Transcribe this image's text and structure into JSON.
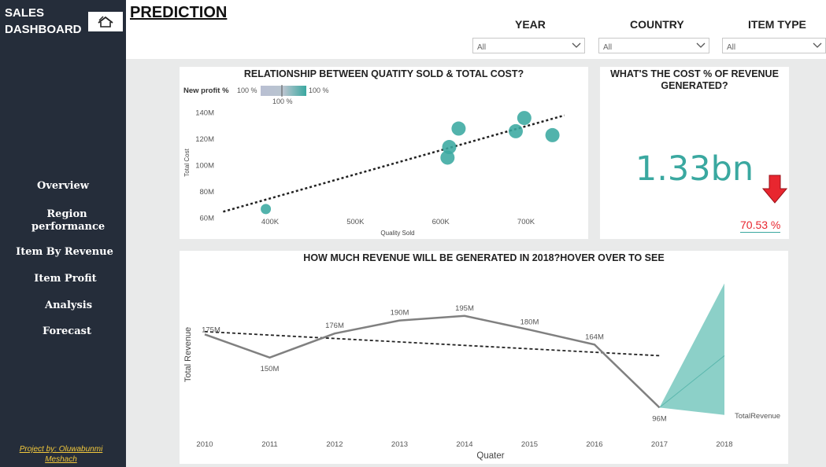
{
  "app": {
    "brand": "SALES DASHBOARD",
    "page_title": "PREDICTION",
    "home_icon": "home-icon"
  },
  "sidebar": {
    "items": [
      {
        "label": "Overview"
      },
      {
        "label": "Region performance"
      },
      {
        "label": "Item By Revenue"
      },
      {
        "label": "Item Profit"
      },
      {
        "label": "Analysis"
      },
      {
        "label": "Forecast"
      }
    ],
    "credit": "Project by: Oluwabunmi Meshach"
  },
  "filters": [
    {
      "label": "YEAR",
      "value": "All"
    },
    {
      "label": "COUNTRY",
      "value": "All"
    },
    {
      "label": "ITEM TYPE",
      "value": "All"
    }
  ],
  "scatter_card": {
    "title": "RELATIONSHIP BETWEEN QUATITY SOLD & TOTAL COST?",
    "legend_title": "New profit %",
    "legend_min": "100 %",
    "legend_max": "100 %",
    "legend_mid": "100 %"
  },
  "kpi_card": {
    "title": "WHAT'S THE COST % OF REVENUE GENERATED?",
    "value": "1.33bn",
    "sub_value": "70.53 %",
    "trend_icon": "down-arrow-icon",
    "value_color": "#3aa8a0",
    "down_color": "#e8262f"
  },
  "forecast_card": {
    "title": "HOW MUCH REVENUE WILL BE GENERATED IN 2018?HOVER OVER TO SEE"
  },
  "chart_data": [
    {
      "type": "scatter",
      "title": "RELATIONSHIP BETWEEN QUATITY SOLD & TOTAL COST?",
      "xlabel": "Quality Sold",
      "ylabel": "Total Cost",
      "x_ticks": [
        "400K",
        "500K",
        "600K",
        "700K"
      ],
      "y_ticks": [
        "60M",
        "80M",
        "100M",
        "120M",
        "140M"
      ],
      "xlim": [
        340000,
        760000
      ],
      "ylim": [
        58,
        145
      ],
      "points": [
        {
          "x": 395000,
          "y": 67
        },
        {
          "x": 608000,
          "y": 106
        },
        {
          "x": 610000,
          "y": 114
        },
        {
          "x": 621000,
          "y": 128
        },
        {
          "x": 688000,
          "y": 126
        },
        {
          "x": 698000,
          "y": 136
        },
        {
          "x": 731000,
          "y": 123
        }
      ],
      "trend": [
        {
          "x": 345000,
          "y": 65
        },
        {
          "x": 745000,
          "y": 138
        }
      ],
      "color": "#3aa8a0"
    },
    {
      "type": "line",
      "title": "HOW MUCH REVENUE WILL BE GENERATED IN 2018?HOVER OVER TO SEE",
      "xlabel": "Quater",
      "ylabel": "Total Revenue",
      "categories": [
        "2010",
        "2011",
        "2012",
        "2013",
        "2014",
        "2015",
        "2016",
        "2017",
        "2018"
      ],
      "ylim": [
        70,
        250
      ],
      "series": [
        {
          "name": "TotalRevenue",
          "values": [
            175,
            150,
            176,
            190,
            195,
            180,
            164,
            96,
            null
          ],
          "labels": [
            "175M",
            "150M",
            "176M",
            "190M",
            "195M",
            "180M",
            "164M",
            "96M",
            ""
          ]
        }
      ],
      "trend": [
        {
          "x": 0,
          "y": 178
        },
        {
          "x": 7,
          "y": 152
        }
      ],
      "forecast": {
        "year": "2018",
        "value": 152,
        "upper": 230,
        "lower": 88
      },
      "color": "#808080",
      "forecast_color": "#7fcbc2"
    }
  ]
}
